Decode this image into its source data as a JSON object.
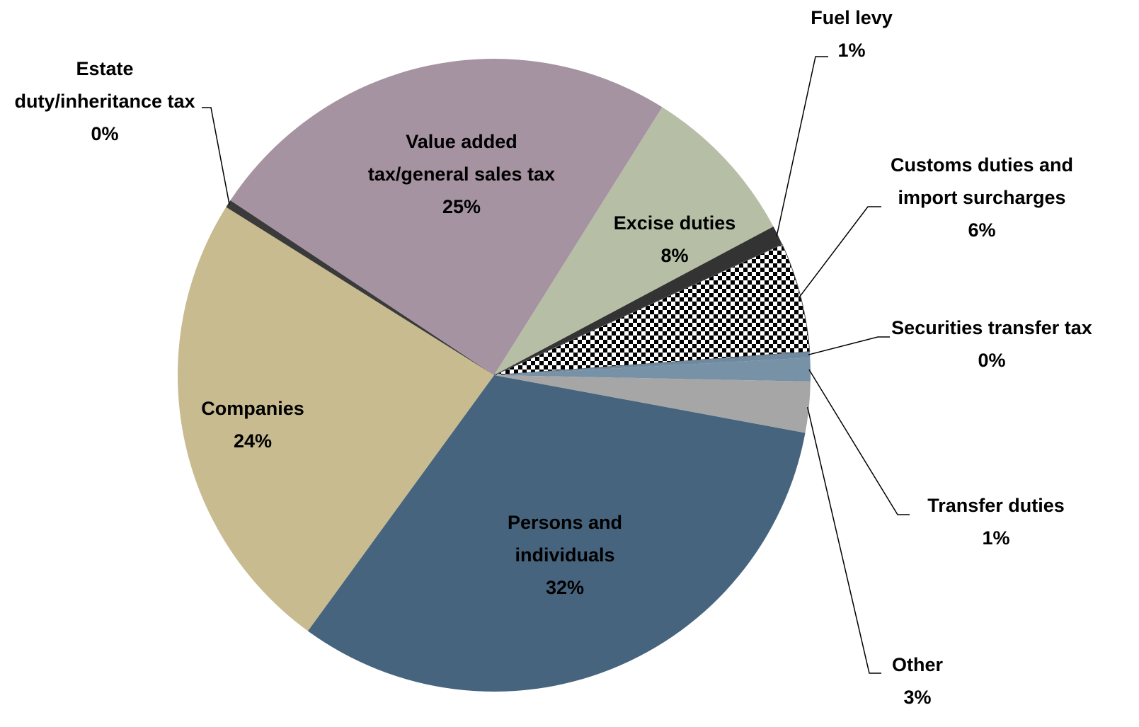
{
  "chart_data": {
    "type": "pie",
    "categories": [
      "Persons and individuals",
      "Companies",
      "Estate duty/inheritance tax",
      "Value added tax/general sales tax",
      "Excise duties",
      "Fuel levy",
      "Customs duties and import surcharges",
      "Securities transfer tax",
      "Transfer duties",
      "Other"
    ],
    "values": [
      32.1,
      23.9,
      0.4,
      24.6,
      8.3,
      1.0,
      5.6,
      0.3,
      1.2,
      2.6
    ],
    "value_labels": [
      "32%",
      "24%",
      "0%",
      "25%",
      "8%",
      "1%",
      "6%",
      "0%",
      "1%",
      "3%"
    ],
    "colors": [
      "#46647e",
      "#c8bb90",
      "#3a3a3a",
      "#a593a2",
      "#b6bfa6",
      "#333333",
      "#000000",
      "#6f8aa0",
      "#7791a6",
      "#a6a6a6"
    ],
    "slice_patterns": {
      "6": "checkerboard"
    }
  }
}
